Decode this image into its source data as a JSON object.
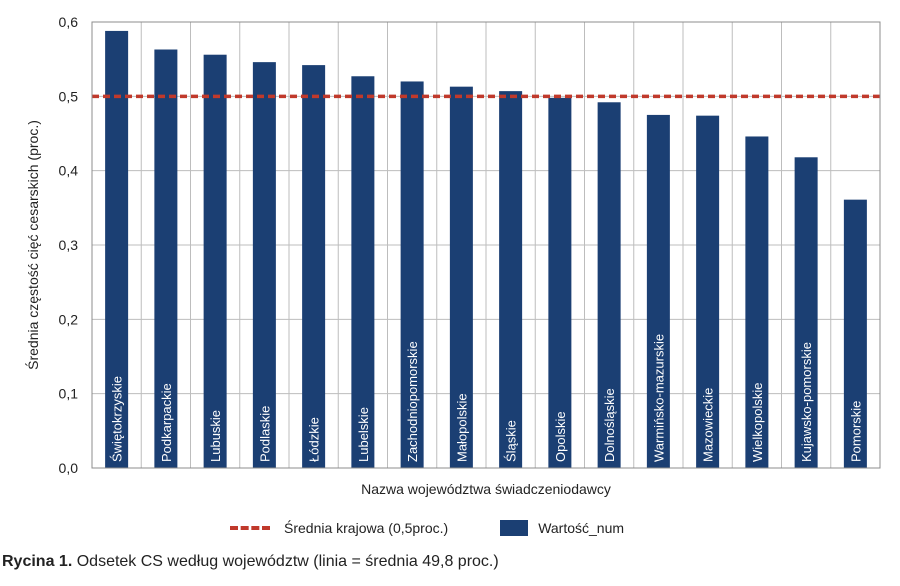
{
  "colors": {
    "bar": "#1b3f73",
    "average_line": "#c0392b",
    "grid": "#bdbdbd",
    "frame": "#8c8c8c"
  },
  "legend": {
    "average_label": "Średnia krajowa (0,5proc.)",
    "bar_label": "Wartość_num"
  },
  "caption": {
    "prefix": "Rycina 1.",
    "text": "Odsetek CS według województw (linia = średnia 49,8 proc.)"
  },
  "chart_data": {
    "type": "bar",
    "title": "",
    "xlabel": "Nazwa województwa świadczeniodawcy",
    "ylabel": "Średnia częstość cięć cesarskich (proc.)",
    "ylim": [
      0,
      0.6
    ],
    "yticks": [
      "0,0",
      "0,1",
      "0,2",
      "0,3",
      "0,4",
      "0,5",
      "0,6"
    ],
    "categories": [
      "Świętokrzyskie",
      "Podkarpackie",
      "Lubuskie",
      "Podlaskie",
      "Łódzkie",
      "Lubelskie",
      "Zachodniopomorskie",
      "Małopolskie",
      "Śląskie",
      "Opolskie",
      "Dolnośląskie",
      "Warmińsko-mazurskie",
      "Mazowieckie",
      "Wielkopolskie",
      "Kujawsko-pomorskie",
      "Pomorskie"
    ],
    "values": [
      0.588,
      0.563,
      0.556,
      0.546,
      0.542,
      0.527,
      0.52,
      0.513,
      0.507,
      0.498,
      0.492,
      0.475,
      0.474,
      0.446,
      0.418,
      0.361
    ],
    "reference_line": 0.5,
    "grid": true,
    "legend_position": "bottom"
  }
}
